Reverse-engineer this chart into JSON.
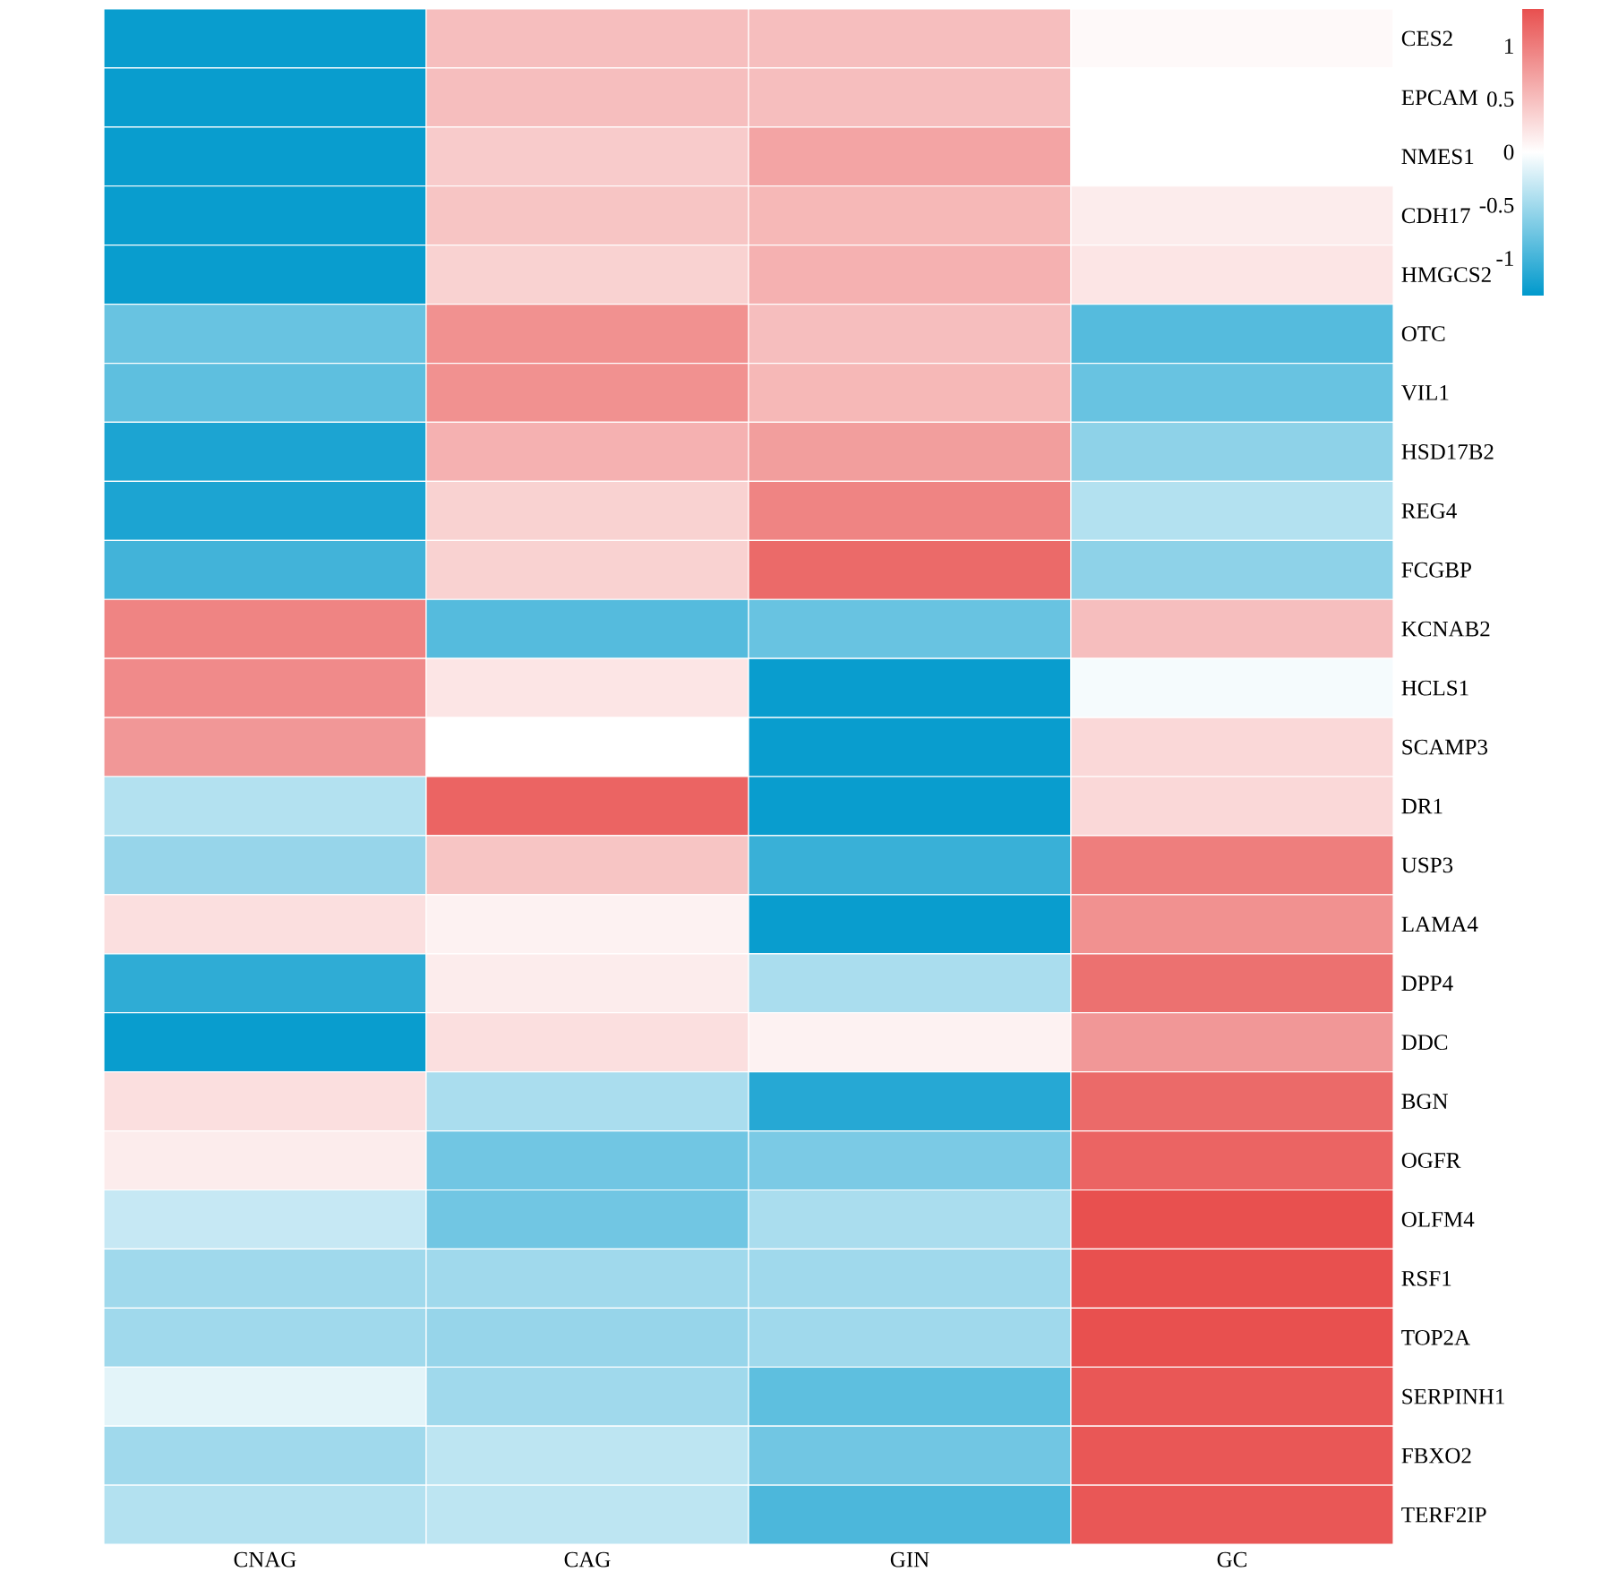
{
  "chart_data": {
    "type": "heatmap",
    "categories": [
      "CNAG",
      "CAG",
      "GIN",
      "GC"
    ],
    "y_categories": [
      "CES2",
      "EPCAM",
      "NMES1",
      "CDH17",
      "HMGCS2",
      "OTC",
      "VIL1",
      "HSD17B2",
      "REG4",
      "FCGBP",
      "KCNAB2",
      "HCLS1",
      "SCAMP3",
      "DR1",
      "USP3",
      "LAMA4",
      "DPP4",
      "DDC",
      "BGN",
      "OGFR",
      "OLFM4",
      "RSF1",
      "TOP2A",
      "SERPINH1",
      "FBXO2",
      "TERF2IP"
    ],
    "cells": [
      [
        -1.3,
        0.5,
        0.5,
        0.05
      ],
      [
        -1.3,
        0.5,
        0.5,
        0.0
      ],
      [
        -1.3,
        0.4,
        0.7,
        0.0
      ],
      [
        -1.3,
        0.45,
        0.55,
        0.15
      ],
      [
        -1.3,
        0.35,
        0.6,
        0.2
      ],
      [
        -0.8,
        0.85,
        0.5,
        -0.9
      ],
      [
        -0.85,
        0.85,
        0.55,
        -0.8
      ],
      [
        -1.2,
        0.6,
        0.75,
        -0.6
      ],
      [
        -1.2,
        0.35,
        0.95,
        -0.4
      ],
      [
        -1.0,
        0.35,
        1.15,
        -0.6
      ],
      [
        0.95,
        -0.9,
        -0.8,
        0.5
      ],
      [
        0.9,
        0.2,
        -1.3,
        -0.05
      ],
      [
        0.8,
        0.0,
        -1.3,
        0.3
      ],
      [
        -0.4,
        1.2,
        -1.3,
        0.3
      ],
      [
        -0.55,
        0.45,
        -1.05,
        1.0
      ],
      [
        0.25,
        0.1,
        -1.3,
        0.85
      ],
      [
        -1.1,
        0.15,
        -0.45,
        1.1
      ],
      [
        -1.3,
        0.25,
        0.1,
        0.8
      ],
      [
        0.25,
        -0.45,
        -1.15,
        1.15
      ],
      [
        0.15,
        -0.75,
        -0.7,
        1.2
      ],
      [
        -0.3,
        -0.75,
        -0.45,
        1.35
      ],
      [
        -0.5,
        -0.5,
        -0.5,
        1.35
      ],
      [
        -0.5,
        -0.55,
        -0.5,
        1.35
      ],
      [
        -0.15,
        -0.5,
        -0.85,
        1.3
      ],
      [
        -0.5,
        -0.35,
        -0.75,
        1.3
      ],
      [
        -0.4,
        -0.35,
        -0.95,
        1.3
      ]
    ],
    "clim": [
      -1.35,
      1.35
    ],
    "cticks": [
      1,
      0.5,
      0,
      -0.5,
      -1
    ]
  }
}
